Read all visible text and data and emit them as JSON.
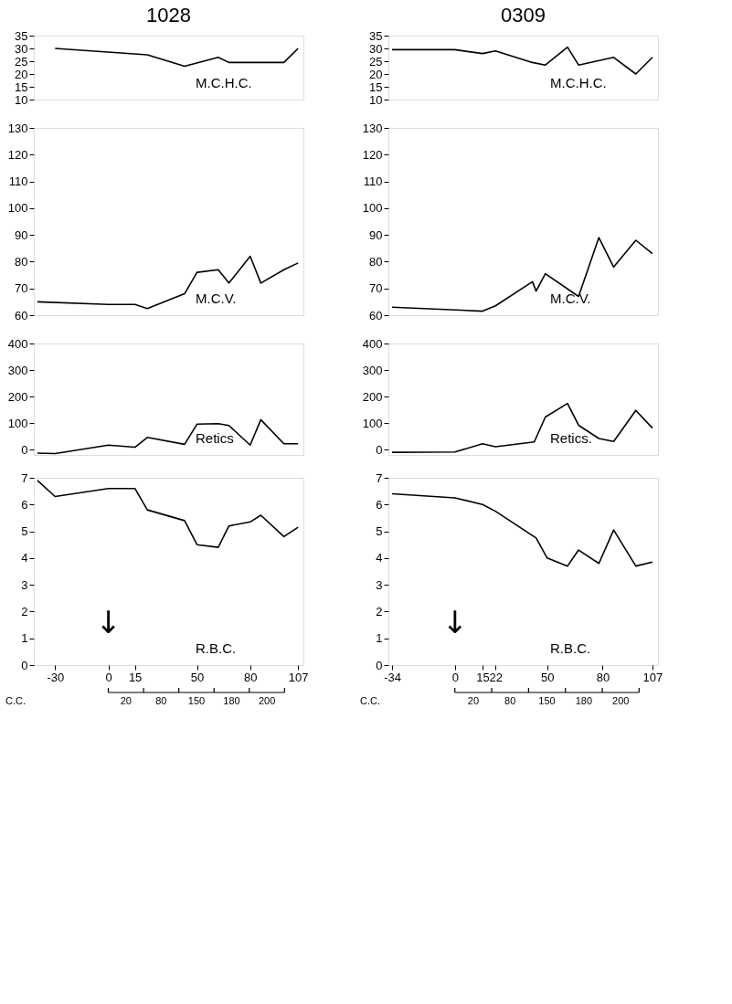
{
  "chart_data": [
    {
      "type": "line",
      "title": "1028",
      "annotations": [
        "M.C.H.C."
      ],
      "x": [
        -30,
        22,
        43,
        62,
        68,
        99,
        107
      ],
      "xlim": [
        -42,
        110
      ],
      "xticks": [
        -30,
        0,
        15,
        50,
        80,
        107
      ],
      "ylim": [
        10,
        35
      ],
      "yticks": [
        10,
        15,
        20,
        25,
        30,
        35
      ],
      "tick_labels": "y",
      "series": [
        {
          "color": "#000000",
          "values": [
            30,
            27.5,
            23,
            26.5,
            24.5,
            24.5,
            30
          ]
        }
      ]
    },
    {
      "type": "line",
      "annotations": [
        "M.C.V."
      ],
      "x": [
        -40,
        0,
        15,
        22,
        43,
        50,
        62,
        68,
        80,
        86,
        99,
        107
      ],
      "xlim": [
        -42,
        110
      ],
      "xticks": [
        -30,
        0,
        15,
        50,
        80,
        107
      ],
      "ylim": [
        60,
        130
      ],
      "yticks": [
        60,
        70,
        80,
        90,
        100,
        110,
        120,
        130
      ],
      "tick_labels": "y",
      "series": [
        {
          "color": "#000000",
          "values": [
            65,
            64,
            64,
            62.5,
            68,
            76,
            77,
            72,
            82,
            72,
            77,
            79.5
          ]
        }
      ]
    },
    {
      "type": "line",
      "annotations": [
        "Retics"
      ],
      "x": [
        -40,
        -30,
        0,
        15,
        22,
        43,
        50,
        62,
        68,
        80,
        86,
        99,
        107
      ],
      "xlim": [
        -42,
        110
      ],
      "xticks": [
        -30,
        0,
        15,
        50,
        80,
        107
      ],
      "ylim": [
        -20,
        400
      ],
      "yticks": [
        0,
        100,
        200,
        300,
        400
      ],
      "tick_labels": "y",
      "series": [
        {
          "color": "#000000",
          "values": [
            -13,
            -15,
            17,
            9,
            46,
            20,
            96,
            98,
            91,
            17,
            113,
            22,
            22
          ]
        }
      ]
    },
    {
      "type": "line",
      "annotations": [
        "R.B.C.",
        "↓",
        "C.C.",
        "20",
        "80",
        "150",
        "180",
        "200"
      ],
      "x": [
        -40,
        -30,
        0,
        15,
        22,
        43,
        50,
        62,
        68,
        80,
        86,
        99,
        107
      ],
      "xlim": [
        -42,
        110
      ],
      "xticks": [
        -30,
        0,
        15,
        50,
        80,
        107
      ],
      "ylim": [
        0,
        7
      ],
      "yticks": [
        0,
        1,
        2,
        3,
        4,
        5,
        6,
        7
      ],
      "series": [
        {
          "color": "#000000",
          "values": [
            6.9,
            6.3,
            6.6,
            6.6,
            5.8,
            5.4,
            4.5,
            4.4,
            5.2,
            5.35,
            5.6,
            4.8,
            5.15
          ]
        }
      ]
    },
    {
      "type": "line",
      "title": "0309",
      "annotations": [
        "M.C.H.C."
      ],
      "x": [
        -34,
        0,
        15,
        22,
        42,
        49,
        61,
        67,
        86,
        98,
        107
      ],
      "xlim": [
        -36,
        110
      ],
      "xticks": [
        -34,
        0,
        15,
        22,
        50,
        80,
        107
      ],
      "ylim": [
        10,
        35
      ],
      "yticks": [
        10,
        15,
        20,
        25,
        30,
        35
      ],
      "tick_labels": "y",
      "series": [
        {
          "color": "#000000",
          "values": [
            29.5,
            29.5,
            28,
            29,
            24.5,
            23.5,
            30.5,
            23.5,
            26.5,
            20,
            26.5
          ]
        }
      ]
    },
    {
      "type": "line",
      "annotations": [
        "M.C.V."
      ],
      "x": [
        -34,
        15,
        22,
        42,
        44,
        49,
        67,
        78,
        86,
        98,
        107
      ],
      "xlim": [
        -36,
        110
      ],
      "xticks": [
        -34,
        0,
        15,
        22,
        50,
        80,
        107
      ],
      "ylim": [
        60,
        130
      ],
      "yticks": [
        60,
        70,
        80,
        90,
        100,
        110,
        120,
        130
      ],
      "tick_labels": "y",
      "series": [
        {
          "color": "#000000",
          "values": [
            63,
            61.5,
            63.5,
            72.5,
            69,
            75.5,
            67,
            89,
            78,
            88,
            83
          ]
        }
      ]
    },
    {
      "type": "line",
      "annotations": [
        "Retics."
      ],
      "x": [
        -34,
        0,
        15,
        22,
        43,
        49,
        61,
        67,
        78,
        86,
        98,
        107
      ],
      "xlim": [
        -36,
        110
      ],
      "xticks": [
        -34,
        0,
        15,
        22,
        50,
        80,
        107
      ],
      "ylim": [
        -20,
        400
      ],
      "yticks": [
        0,
        100,
        200,
        300,
        400
      ],
      "tick_labels": "y",
      "series": [
        {
          "color": "#000000",
          "values": [
            -10,
            -9,
            22,
            11,
            29,
            123,
            174,
            92,
            42,
            31,
            148,
            81
          ]
        }
      ]
    },
    {
      "type": "line",
      "annotations": [
        "R.B.C.",
        "↓",
        "C.C.",
        "20",
        "80",
        "150",
        "180",
        "200"
      ],
      "x": [
        -34,
        0,
        15,
        22,
        44,
        50,
        61,
        67,
        78,
        86,
        98,
        107
      ],
      "xlim": [
        -36,
        110
      ],
      "xticks": [
        -34,
        0,
        15,
        22,
        50,
        80,
        107
      ],
      "ylim": [
        0,
        7
      ],
      "yticks": [
        0,
        1,
        2,
        3,
        4,
        5,
        6,
        7
      ],
      "series": [
        {
          "color": "#000000",
          "values": [
            6.4,
            6.25,
            6.0,
            5.75,
            4.75,
            4.0,
            3.7,
            4.3,
            3.8,
            5.05,
            3.7,
            3.85
          ]
        }
      ]
    }
  ]
}
